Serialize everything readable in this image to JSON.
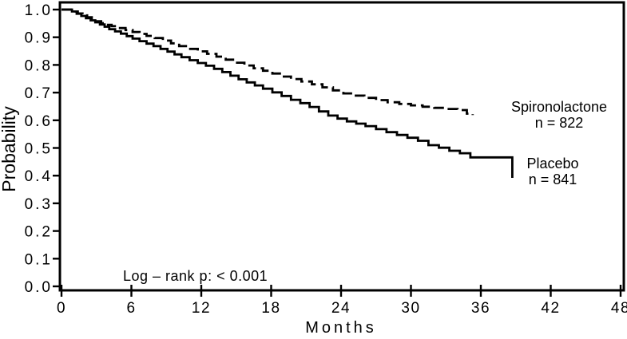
{
  "chart_data": {
    "type": "line",
    "variant": "kaplan-meier-step",
    "title": "",
    "xlabel": "Months",
    "ylabel": "Probability",
    "xlim": [
      0,
      48
    ],
    "ylim": [
      0.0,
      1.0
    ],
    "xticks": [
      0,
      6,
      12,
      18,
      24,
      30,
      36,
      42,
      48
    ],
    "yticks": [
      1.0,
      0.9,
      0.8,
      0.7,
      0.6,
      0.5,
      0.4,
      0.3,
      0.2,
      0.1,
      0.0
    ],
    "grid": false,
    "legend_position": "inline-right-of-curves",
    "annotation": "Log – rank p: < 0.001",
    "line_color": "#000000",
    "background_color": "#ffffff",
    "series": [
      {
        "name": "Spironolactone",
        "n_label": "n = 822",
        "n": 822,
        "line_style": "dashed",
        "points": [
          [
            0,
            1.0
          ],
          [
            1.0,
            0.993
          ],
          [
            1.4,
            0.986
          ],
          [
            1.8,
            0.979
          ],
          [
            2.2,
            0.972
          ],
          [
            2.6,
            0.965
          ],
          [
            3.0,
            0.958
          ],
          [
            3.4,
            0.951
          ],
          [
            3.8,
            0.945
          ],
          [
            4.3,
            0.94
          ],
          [
            4.9,
            0.933
          ],
          [
            5.5,
            0.926
          ],
          [
            6.1,
            0.919
          ],
          [
            6.7,
            0.912
          ],
          [
            7.3,
            0.905
          ],
          [
            8.0,
            0.897
          ],
          [
            8.7,
            0.888
          ],
          [
            9.4,
            0.878
          ],
          [
            10.1,
            0.868
          ],
          [
            10.9,
            0.858
          ],
          [
            11.7,
            0.849
          ],
          [
            12.5,
            0.84
          ],
          [
            13.3,
            0.83
          ],
          [
            14.1,
            0.819
          ],
          [
            14.9,
            0.808
          ],
          [
            15.7,
            0.798
          ],
          [
            16.5,
            0.788
          ],
          [
            17.3,
            0.779
          ],
          [
            18.1,
            0.769
          ],
          [
            18.9,
            0.758
          ],
          [
            19.7,
            0.749
          ],
          [
            20.6,
            0.74
          ],
          [
            21.5,
            0.73
          ],
          [
            22.4,
            0.719
          ],
          [
            23.3,
            0.708
          ],
          [
            24.2,
            0.697
          ],
          [
            25.1,
            0.689
          ],
          [
            26.0,
            0.681
          ],
          [
            27.0,
            0.673
          ],
          [
            28.0,
            0.665
          ],
          [
            29.0,
            0.659
          ],
          [
            30.0,
            0.654
          ],
          [
            31.0,
            0.649
          ],
          [
            32.0,
            0.645
          ],
          [
            33.0,
            0.641
          ],
          [
            34.0,
            0.637
          ],
          [
            34.8,
            0.624
          ],
          [
            35.3,
            0.619
          ]
        ]
      },
      {
        "name": "Placebo",
        "n_label": "n = 841",
        "n": 841,
        "line_style": "solid",
        "points": [
          [
            0,
            1.0
          ],
          [
            0.9,
            0.993
          ],
          [
            1.3,
            0.985
          ],
          [
            1.7,
            0.977
          ],
          [
            2.1,
            0.969
          ],
          [
            2.5,
            0.961
          ],
          [
            2.9,
            0.954
          ],
          [
            3.3,
            0.946
          ],
          [
            3.7,
            0.938
          ],
          [
            4.1,
            0.929
          ],
          [
            4.6,
            0.921
          ],
          [
            5.1,
            0.913
          ],
          [
            5.6,
            0.904
          ],
          [
            6.1,
            0.895
          ],
          [
            6.7,
            0.886
          ],
          [
            7.3,
            0.877
          ],
          [
            7.9,
            0.868
          ],
          [
            8.5,
            0.858
          ],
          [
            9.1,
            0.848
          ],
          [
            9.7,
            0.838
          ],
          [
            10.3,
            0.828
          ],
          [
            11.0,
            0.817
          ],
          [
            11.7,
            0.807
          ],
          [
            12.4,
            0.797
          ],
          [
            13.1,
            0.786
          ],
          [
            13.8,
            0.774
          ],
          [
            14.5,
            0.761
          ],
          [
            15.2,
            0.748
          ],
          [
            15.9,
            0.737
          ],
          [
            16.6,
            0.726
          ],
          [
            17.3,
            0.714
          ],
          [
            18.1,
            0.701
          ],
          [
            18.9,
            0.688
          ],
          [
            19.7,
            0.674
          ],
          [
            20.5,
            0.662
          ],
          [
            21.3,
            0.648
          ],
          [
            22.1,
            0.632
          ],
          [
            22.9,
            0.617
          ],
          [
            23.7,
            0.606
          ],
          [
            24.5,
            0.596
          ],
          [
            25.3,
            0.588
          ],
          [
            26.1,
            0.579
          ],
          [
            27.0,
            0.568
          ],
          [
            27.9,
            0.557
          ],
          [
            28.8,
            0.547
          ],
          [
            29.7,
            0.537
          ],
          [
            30.6,
            0.526
          ],
          [
            31.5,
            0.51
          ],
          [
            32.4,
            0.501
          ],
          [
            33.3,
            0.49
          ],
          [
            34.2,
            0.481
          ],
          [
            35.1,
            0.466
          ],
          [
            38.7,
            0.466
          ],
          [
            38.7,
            0.392
          ]
        ]
      }
    ]
  }
}
